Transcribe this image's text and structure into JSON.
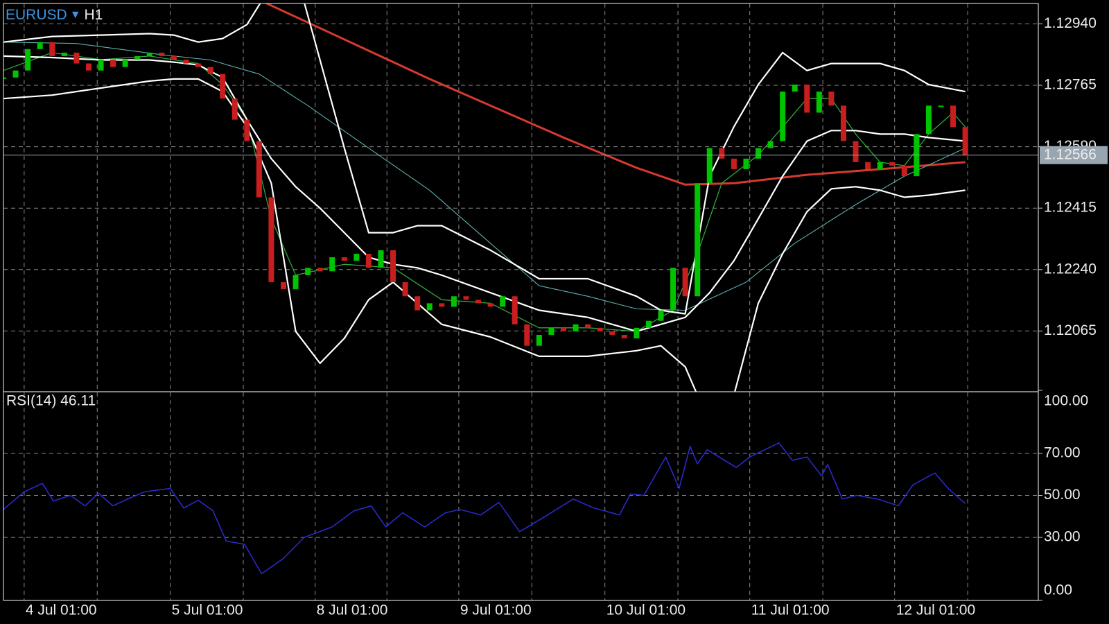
{
  "chart_data": {
    "type": "candlestick",
    "symbol": "EURUSD",
    "direction_marker": "▼",
    "timeframe": "H1",
    "up_color": "#00c400",
    "down_color": "#c81e1e",
    "grid": true,
    "xlim": [
      0,
      85
    ],
    "ylim": [
      1.11892,
      1.12998
    ],
    "yticks": [
      {
        "value": 1.1294,
        "label": "1.12940"
      },
      {
        "value": 1.12765,
        "label": "1.12765"
      },
      {
        "value": 1.1259,
        "label": "1.12590"
      },
      {
        "value": 1.12415,
        "label": "1.12415"
      },
      {
        "value": 1.1224,
        "label": "1.12240"
      },
      {
        "value": 1.12065,
        "label": "1.12065"
      }
    ],
    "xticks": [
      {
        "value": 1.7,
        "label": "4 Jul 01:00"
      },
      {
        "value": 13.7,
        "label": "5 Jul 01:00"
      },
      {
        "value": 25.6,
        "label": "8 Jul 01:00"
      },
      {
        "value": 37.4,
        "label": "9 Jul 01:00"
      },
      {
        "value": 49.4,
        "label": "10 Jul 01:00"
      },
      {
        "value": 61.3,
        "label": "11 Jul 01:00"
      },
      {
        "value": 73.2,
        "label": "12 Jul 01:00"
      }
    ],
    "xminor": [
      7.7,
      19.7,
      31.5,
      43.4,
      55.4,
      67.3,
      79.2
    ],
    "last_price": 1.12566,
    "candles": {
      "close": [
        1.12787,
        1.12807,
        1.12868,
        1.12888,
        1.12848,
        1.12858,
        1.12827,
        1.12807,
        1.12838,
        1.12817,
        1.12838,
        1.12848,
        1.12858,
        1.12848,
        1.12838,
        1.12827,
        1.12817,
        1.12797,
        1.12727,
        1.12667,
        1.12606,
        1.12446,
        1.12204,
        1.12184,
        1.12224,
        1.12245,
        1.12235,
        1.12275,
        1.12265,
        1.12285,
        1.12245,
        1.12295,
        1.12204,
        1.12164,
        1.12124,
        1.12144,
        1.12134,
        1.12164,
        1.12154,
        1.12144,
        1.12134,
        1.12164,
        1.12084,
        1.12023,
        1.12054,
        1.12074,
        1.12064,
        1.12084,
        1.12074,
        1.12064,
        1.12054,
        1.12044,
        1.12074,
        1.12094,
        1.12124,
        1.12245,
        1.12164,
        1.12486,
        1.12586,
        1.12556,
        1.12526,
        1.12556,
        1.12586,
        1.12606,
        1.12747,
        1.12767,
        1.12687,
        1.12747,
        1.12707,
        1.12606,
        1.12546,
        1.12526,
        1.12546,
        1.12536,
        1.12506,
        1.12626,
        1.12707,
        1.12707,
        1.12646,
        1.12566
      ]
    },
    "bollinger": {
      "color": "#ffffff",
      "x": [
        0,
        4,
        8,
        12,
        14,
        16,
        18,
        20,
        22,
        24,
        26,
        28,
        30,
        32,
        34,
        36,
        40,
        44,
        48,
        52,
        54,
        56,
        58,
        60,
        62,
        64,
        66,
        68,
        70,
        72,
        74,
        76,
        79
      ],
      "upper": [
        1.12888,
        1.12904,
        1.12908,
        1.12912,
        1.12908,
        1.12888,
        1.12898,
        1.12938,
        1.13049,
        1.13089,
        1.12837,
        1.12586,
        1.12345,
        1.12345,
        1.12365,
        1.12365,
        1.12295,
        1.12214,
        1.12214,
        1.12164,
        1.12124,
        1.12114,
        1.12506,
        1.12647,
        1.12767,
        1.12858,
        1.12807,
        1.12827,
        1.12827,
        1.12827,
        1.12807,
        1.12767,
        1.12747
      ],
      "middle": [
        1.12848,
        1.12844,
        1.12837,
        1.12837,
        1.12831,
        1.12823,
        1.12787,
        1.12667,
        1.12556,
        1.12476,
        1.12415,
        1.12345,
        1.12275,
        1.12255,
        1.12245,
        1.12224,
        1.12174,
        1.12124,
        1.12104,
        1.12064,
        1.12084,
        1.12104,
        1.12174,
        1.12265,
        1.12385,
        1.12506,
        1.12606,
        1.12636,
        1.12636,
        1.12626,
        1.12626,
        1.12616,
        1.12606
      ],
      "lower": [
        1.12727,
        1.12737,
        1.12757,
        1.12777,
        1.12783,
        1.12783,
        1.12747,
        1.12647,
        1.12486,
        1.12064,
        1.11973,
        1.12044,
        1.12154,
        1.12204,
        1.12144,
        1.12084,
        1.12048,
        1.11993,
        1.11993,
        1.12009,
        1.12023,
        1.11963,
        1.11802,
        1.11883,
        1.12144,
        1.12285,
        1.12405,
        1.1247,
        1.12476,
        1.12466,
        1.12446,
        1.12452,
        1.12466
      ]
    },
    "moving_averages": [
      {
        "color": "#d63a2e",
        "width": 3,
        "x": [
          21,
          35,
          46,
          52,
          56,
          60,
          66,
          72,
          79
        ],
        "values": [
          1.13008,
          1.12783,
          1.12616,
          1.1253,
          1.12482,
          1.12486,
          1.1251,
          1.12526,
          1.12546
        ]
      },
      {
        "color": "#2fa83a",
        "width": 1.3,
        "x": [
          0,
          4,
          8,
          12,
          16,
          18,
          20,
          22,
          24,
          28,
          32,
          36,
          40,
          44,
          48,
          52,
          55,
          57,
          59,
          62,
          64,
          66,
          68,
          70,
          72,
          74,
          76,
          78,
          79
        ],
        "values": [
          1.12807,
          1.12858,
          1.12838,
          1.12848,
          1.12827,
          1.12767,
          1.12667,
          1.12385,
          1.12224,
          1.12255,
          1.12245,
          1.12154,
          1.12144,
          1.12074,
          1.12074,
          1.12064,
          1.12124,
          1.12285,
          1.12486,
          1.12566,
          1.12646,
          1.12727,
          1.12727,
          1.12626,
          1.12546,
          1.12536,
          1.12626,
          1.12687,
          1.12646
        ]
      },
      {
        "color": "#5fb0b0",
        "width": 1.1,
        "x": [
          0,
          6,
          13,
          17,
          21,
          25,
          30,
          35,
          39,
          44,
          48,
          52,
          56,
          61,
          65,
          70,
          74,
          79
        ],
        "values": [
          1.12888,
          1.12884,
          1.12852,
          1.12837,
          1.12797,
          1.12707,
          1.12586,
          1.12466,
          1.12345,
          1.12194,
          1.12164,
          1.12128,
          1.12124,
          1.12204,
          1.12315,
          1.12425,
          1.12506,
          1.12586
        ]
      }
    ],
    "rsi": {
      "label": "RSI(14) 46.11",
      "color": "#2c2cd6",
      "ylim": [
        0,
        100
      ],
      "yticks": [
        {
          "value": 100,
          "label": "100.00"
        },
        {
          "value": 70,
          "label": "70.00"
        },
        {
          "value": 50,
          "label": "50.00"
        },
        {
          "value": 30,
          "label": "30.00"
        },
        {
          "value": 0,
          "label": "0.00"
        }
      ],
      "x": [
        0,
        1.7,
        3.2,
        4.1,
        5.5,
        6.7,
        7.8,
        9,
        10.2,
        11.6,
        13.7,
        14.8,
        16,
        17.2,
        18.3,
        19.8,
        21.2,
        23,
        24.7,
        27,
        28.8,
        30.2,
        31.4,
        32.8,
        34.6,
        36.3,
        37.5,
        39.2,
        40.7,
        42.4,
        44.5,
        46.8,
        48.5,
        50.6,
        51.5,
        52.6,
        54.4,
        55.5,
        56.4,
        57,
        57.8,
        60.2,
        61.3,
        63.7,
        64.8,
        66,
        67.2,
        67.7,
        68.9,
        70.1,
        71.8,
        73.5,
        74.7,
        76.5,
        77.6,
        79
      ],
      "values": [
        43.3,
        51.7,
        55.7,
        47.3,
        50,
        45,
        51,
        45,
        48.3,
        51.7,
        53.3,
        44,
        47.7,
        42.7,
        28.3,
        26.7,
        12.7,
        20,
        30,
        35,
        42.7,
        45,
        35,
        41.7,
        35,
        41.7,
        43.3,
        40.7,
        46.7,
        32.7,
        40,
        48.3,
        44,
        40.7,
        50.7,
        50,
        68.3,
        53.3,
        73.3,
        65,
        71.7,
        63.3,
        68.3,
        75,
        66.7,
        68.3,
        59.3,
        64.7,
        48.3,
        50,
        48.3,
        45,
        55,
        60.7,
        53.3,
        46.11
      ]
    }
  }
}
